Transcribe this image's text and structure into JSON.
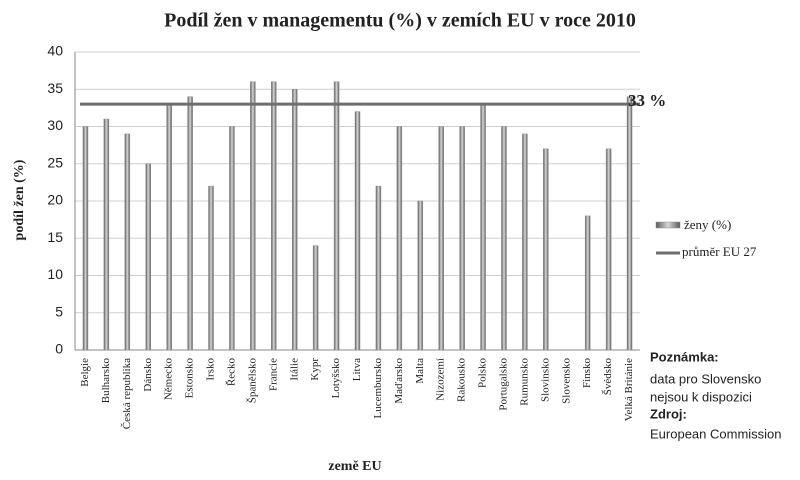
{
  "chart_data": {
    "type": "bar",
    "title": "Podíl žen v managementu (%) v zemích EU v roce 2010",
    "x_label": "země EU",
    "y_label": "podíl žen (%)",
    "categories": [
      "Belgie",
      "Bulharsko",
      "Česká republika",
      "Dánsko",
      "Německo",
      "Estonsko",
      "Irsko",
      "Řecko",
      "Španělsko",
      "Francie",
      "Itálie",
      "Kypr",
      "Lotyšsko",
      "Litva",
      "Lucembursko",
      "Maďarsko",
      "Malta",
      "Nizozemí",
      "Rakousko",
      "Polsko",
      "Portugalsko",
      "Rumunsko",
      "Slovinsko",
      "Slovensko",
      "Finsko",
      "Švédsko",
      "Velká Británie"
    ],
    "series": [
      {
        "name": "ženy (%)",
        "color": "#8c8c8c",
        "values": [
          30,
          31,
          29,
          25,
          33,
          34,
          22,
          30,
          36,
          36,
          35,
          14,
          36,
          32,
          22,
          30,
          20,
          30,
          30,
          33,
          30,
          29,
          27,
          null,
          18,
          27,
          34
        ]
      }
    ],
    "average": {
      "name": "průměr EU 27",
      "value": 33,
      "label": "33 %",
      "color": "#6e6e6e"
    },
    "ylim": [
      0,
      40
    ],
    "yticks": [
      0,
      5,
      10,
      15,
      20,
      25,
      30,
      35,
      40
    ],
    "grid": true,
    "legend": "right",
    "note": {
      "title": "Poznámka:",
      "lines": [
        "data pro Slovensko",
        "nejsou k dispozici"
      ],
      "source_title": "Zdroj:",
      "source": "European Commission"
    }
  }
}
